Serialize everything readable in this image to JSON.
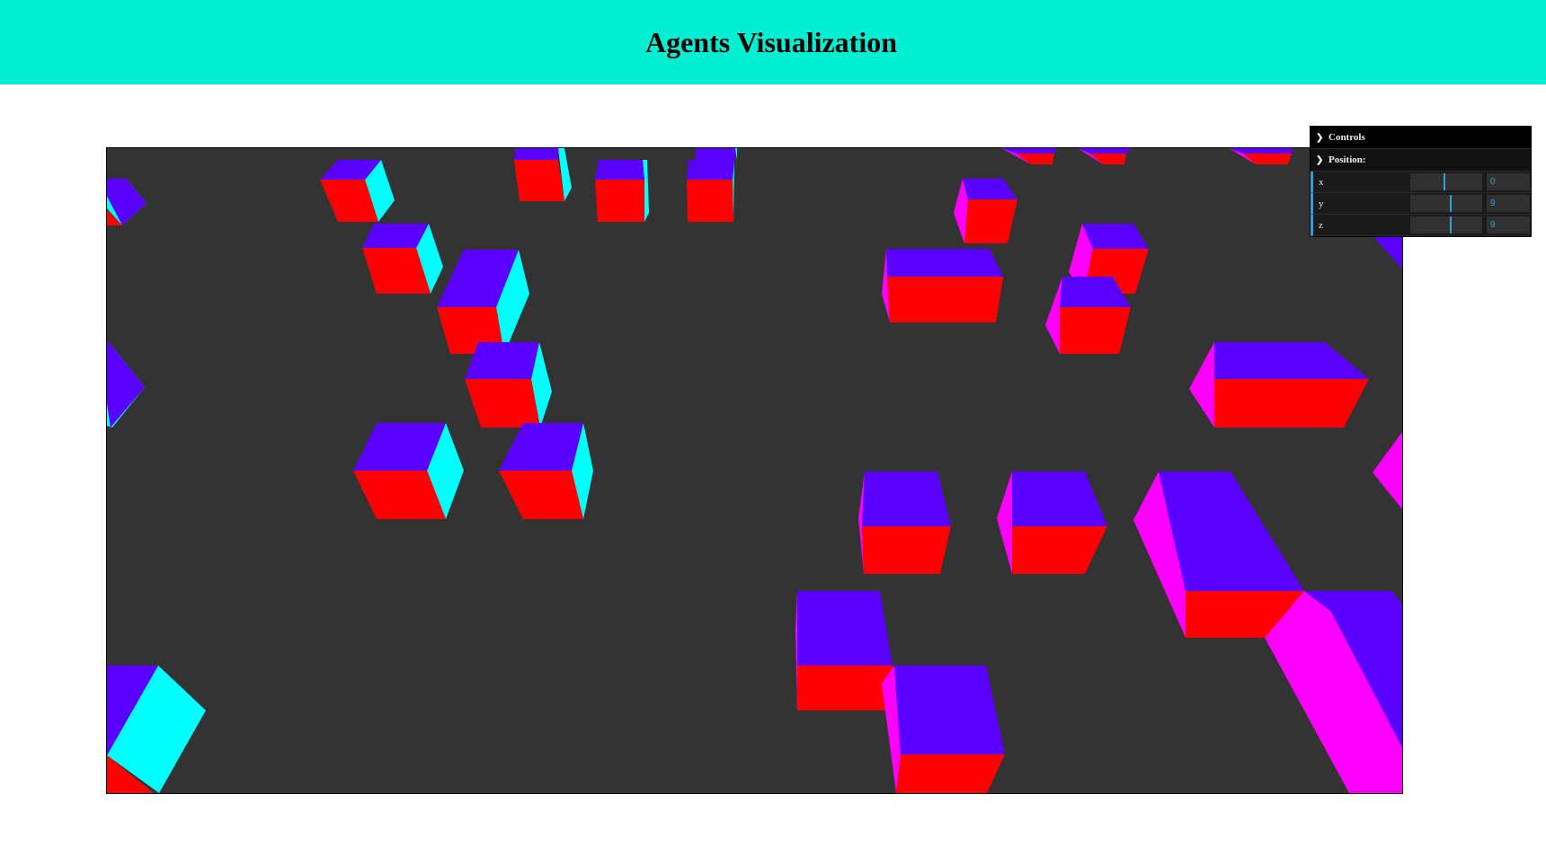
{
  "header": {
    "title": "Agents Visualization",
    "background": "#00eed2"
  },
  "scene": {
    "background": "#333333",
    "colors": {
      "top": "#5a00ff",
      "front": "#ff0000",
      "side_cyan": "#00ffff",
      "side_magenta": "#ff00ff"
    }
  },
  "controls": {
    "title": "Controls",
    "folder": "Position:",
    "fields": [
      {
        "label": "x",
        "value": "0",
        "fraction": 0.48
      },
      {
        "label": "y",
        "value": "9",
        "fraction": 0.56
      },
      {
        "label": "z",
        "value": "9",
        "fraction": 0.56
      }
    ]
  }
}
